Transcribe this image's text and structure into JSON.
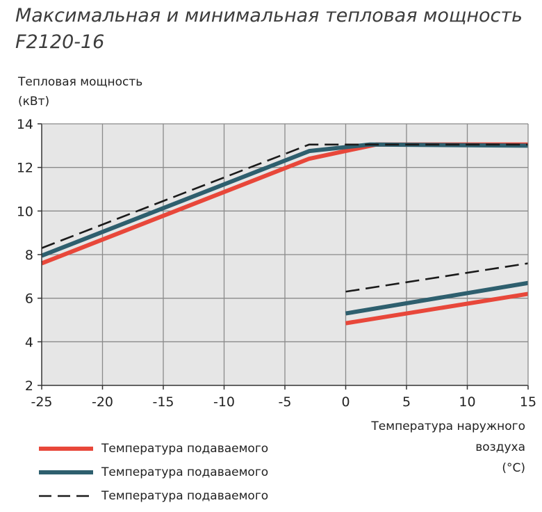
{
  "title_line1": "Максимальная и минимальная тепловая мощность",
  "title_line2": "F2120-16",
  "ylabel_line1": "Тепловая мощность",
  "ylabel_line2": "(кВт)",
  "xlabel_line1": "Температура наружного",
  "xlabel_line2": "воздуха",
  "xlabel_line3": "(°C)",
  "legend": [
    {
      "label": "Температура подаваемого",
      "color": "#e8473a",
      "style": "solid"
    },
    {
      "label": "Температура подаваемого",
      "color": "#2e5f6e",
      "style": "solid"
    },
    {
      "label": "Температура подаваемого",
      "color": "#1a1a1a",
      "style": "dashed"
    }
  ],
  "chart_data": {
    "type": "line",
    "xlim": [
      -25,
      15
    ],
    "ylim": [
      2,
      14
    ],
    "xticks": [
      -25,
      -20,
      -15,
      -10,
      -5,
      0,
      5,
      10,
      15
    ],
    "yticks": [
      2,
      4,
      6,
      8,
      10,
      12,
      14
    ],
    "grid": true,
    "legend_position": "bottom-left",
    "series": [
      {
        "color": "#e8473a",
        "style": "solid",
        "segment": "max",
        "x": [
          -25,
          -3,
          2.5,
          15
        ],
        "y": [
          7.6,
          12.4,
          13.05,
          13.05
        ]
      },
      {
        "color": "#2e5f6e",
        "style": "solid",
        "segment": "max",
        "x": [
          -25,
          -3,
          2,
          15
        ],
        "y": [
          7.95,
          12.75,
          13.05,
          13.0
        ]
      },
      {
        "color": "#1a1a1a",
        "style": "dashed",
        "segment": "max",
        "x": [
          -25,
          -3,
          15
        ],
        "y": [
          8.3,
          13.05,
          13.05
        ]
      },
      {
        "color": "#e8473a",
        "style": "solid",
        "segment": "min",
        "x": [
          0,
          15
        ],
        "y": [
          4.85,
          6.2
        ]
      },
      {
        "color": "#2e5f6e",
        "style": "solid",
        "segment": "min",
        "x": [
          0,
          15
        ],
        "y": [
          5.3,
          6.7
        ]
      },
      {
        "color": "#1a1a1a",
        "style": "dashed",
        "segment": "min",
        "x": [
          0,
          15
        ],
        "y": [
          6.3,
          7.6
        ]
      }
    ]
  }
}
